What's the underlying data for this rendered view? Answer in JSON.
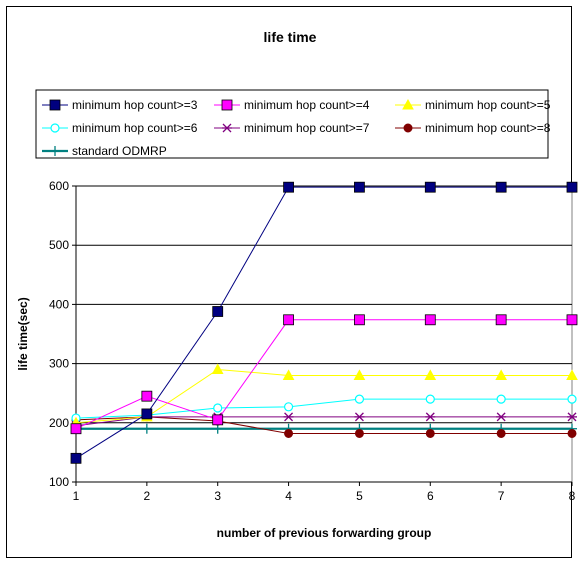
{
  "chart_data": {
    "type": "line",
    "title": "life time",
    "xlabel": "number of previous forwarding group",
    "ylabel": "life time(sec)",
    "categories": [
      "1",
      "2",
      "3",
      "4",
      "5",
      "6",
      "7",
      "8"
    ],
    "x": [
      1,
      2,
      3,
      4,
      5,
      6,
      7,
      8
    ],
    "ylim": [
      100,
      600
    ],
    "yticks": [
      100,
      200,
      300,
      400,
      500,
      600
    ],
    "grid": "horizontal",
    "legend_position": "top",
    "series": [
      {
        "name": "minimum hop count>=3",
        "color": "#000080",
        "marker": "square",
        "values": [
          140,
          215,
          388,
          598,
          598,
          598,
          598,
          598
        ]
      },
      {
        "name": "minimum hop count>=4",
        "color": "#ff00ff",
        "marker": "square",
        "values": [
          190,
          245,
          205,
          374,
          374,
          374,
          374,
          374
        ]
      },
      {
        "name": "minimum hop count>=5",
        "color": "#ffff00",
        "marker": "triangle",
        "values": [
          200,
          210,
          290,
          280,
          280,
          280,
          280,
          280
        ]
      },
      {
        "name": "minimum hop count>=6",
        "color": "#00ffff",
        "marker": "circle-open",
        "values": [
          208,
          213,
          225,
          227,
          240,
          240,
          240,
          240
        ]
      },
      {
        "name": "minimum hop count>=7",
        "color": "#800080",
        "marker": "asterisk",
        "values": [
          195,
          210,
          210,
          210,
          210,
          210,
          210,
          210
        ]
      },
      {
        "name": "minimum hop count>=8",
        "color": "#800000",
        "marker": "circle",
        "values": [
          205,
          210,
          203,
          182,
          182,
          182,
          182,
          182
        ]
      },
      {
        "name": "standard ODMRP",
        "color": "#008080",
        "marker": "plus",
        "values": [
          190,
          190,
          190,
          190,
          190,
          190,
          190,
          190
        ]
      }
    ]
  }
}
